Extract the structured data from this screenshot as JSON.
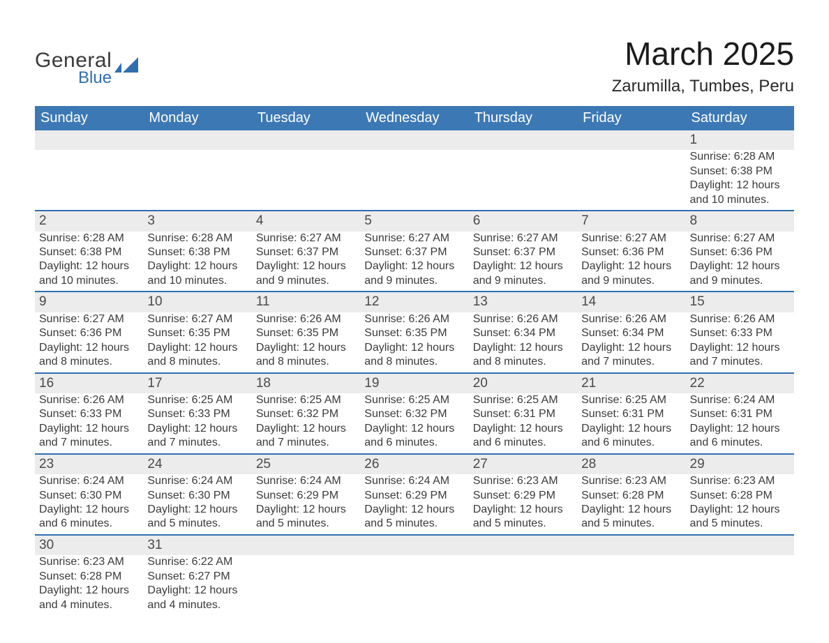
{
  "brand": {
    "word1": "General",
    "word2": "Blue",
    "shape_color": "#2f6fb0"
  },
  "title": {
    "month_year": "March 2025",
    "location": "Zarumilla, Tumbes, Peru"
  },
  "calendar": {
    "header_bg": "#3c78b4",
    "header_text_color": "#ffffff",
    "daynum_bg": "#ececec",
    "body_bg": "#ffffff",
    "separator_color": "#2f6fb0",
    "body_text_color": "#3a3a3a",
    "fontsize_header": 20,
    "fontsize_daynum": 19,
    "fontsize_body": 16,
    "day_names": [
      "Sunday",
      "Monday",
      "Tuesday",
      "Wednesday",
      "Thursday",
      "Friday",
      "Saturday"
    ],
    "weeks": [
      [
        null,
        null,
        null,
        null,
        null,
        null,
        {
          "n": "1",
          "sunrise": "Sunrise: 6:28 AM",
          "sunset": "Sunset: 6:38 PM",
          "daylight1": "Daylight: 12 hours",
          "daylight2": "and 10 minutes."
        }
      ],
      [
        {
          "n": "2",
          "sunrise": "Sunrise: 6:28 AM",
          "sunset": "Sunset: 6:38 PM",
          "daylight1": "Daylight: 12 hours",
          "daylight2": "and 10 minutes."
        },
        {
          "n": "3",
          "sunrise": "Sunrise: 6:28 AM",
          "sunset": "Sunset: 6:38 PM",
          "daylight1": "Daylight: 12 hours",
          "daylight2": "and 10 minutes."
        },
        {
          "n": "4",
          "sunrise": "Sunrise: 6:27 AM",
          "sunset": "Sunset: 6:37 PM",
          "daylight1": "Daylight: 12 hours",
          "daylight2": "and 9 minutes."
        },
        {
          "n": "5",
          "sunrise": "Sunrise: 6:27 AM",
          "sunset": "Sunset: 6:37 PM",
          "daylight1": "Daylight: 12 hours",
          "daylight2": "and 9 minutes."
        },
        {
          "n": "6",
          "sunrise": "Sunrise: 6:27 AM",
          "sunset": "Sunset: 6:37 PM",
          "daylight1": "Daylight: 12 hours",
          "daylight2": "and 9 minutes."
        },
        {
          "n": "7",
          "sunrise": "Sunrise: 6:27 AM",
          "sunset": "Sunset: 6:36 PM",
          "daylight1": "Daylight: 12 hours",
          "daylight2": "and 9 minutes."
        },
        {
          "n": "8",
          "sunrise": "Sunrise: 6:27 AM",
          "sunset": "Sunset: 6:36 PM",
          "daylight1": "Daylight: 12 hours",
          "daylight2": "and 9 minutes."
        }
      ],
      [
        {
          "n": "9",
          "sunrise": "Sunrise: 6:27 AM",
          "sunset": "Sunset: 6:36 PM",
          "daylight1": "Daylight: 12 hours",
          "daylight2": "and 8 minutes."
        },
        {
          "n": "10",
          "sunrise": "Sunrise: 6:27 AM",
          "sunset": "Sunset: 6:35 PM",
          "daylight1": "Daylight: 12 hours",
          "daylight2": "and 8 minutes."
        },
        {
          "n": "11",
          "sunrise": "Sunrise: 6:26 AM",
          "sunset": "Sunset: 6:35 PM",
          "daylight1": "Daylight: 12 hours",
          "daylight2": "and 8 minutes."
        },
        {
          "n": "12",
          "sunrise": "Sunrise: 6:26 AM",
          "sunset": "Sunset: 6:35 PM",
          "daylight1": "Daylight: 12 hours",
          "daylight2": "and 8 minutes."
        },
        {
          "n": "13",
          "sunrise": "Sunrise: 6:26 AM",
          "sunset": "Sunset: 6:34 PM",
          "daylight1": "Daylight: 12 hours",
          "daylight2": "and 8 minutes."
        },
        {
          "n": "14",
          "sunrise": "Sunrise: 6:26 AM",
          "sunset": "Sunset: 6:34 PM",
          "daylight1": "Daylight: 12 hours",
          "daylight2": "and 7 minutes."
        },
        {
          "n": "15",
          "sunrise": "Sunrise: 6:26 AM",
          "sunset": "Sunset: 6:33 PM",
          "daylight1": "Daylight: 12 hours",
          "daylight2": "and 7 minutes."
        }
      ],
      [
        {
          "n": "16",
          "sunrise": "Sunrise: 6:26 AM",
          "sunset": "Sunset: 6:33 PM",
          "daylight1": "Daylight: 12 hours",
          "daylight2": "and 7 minutes."
        },
        {
          "n": "17",
          "sunrise": "Sunrise: 6:25 AM",
          "sunset": "Sunset: 6:33 PM",
          "daylight1": "Daylight: 12 hours",
          "daylight2": "and 7 minutes."
        },
        {
          "n": "18",
          "sunrise": "Sunrise: 6:25 AM",
          "sunset": "Sunset: 6:32 PM",
          "daylight1": "Daylight: 12 hours",
          "daylight2": "and 7 minutes."
        },
        {
          "n": "19",
          "sunrise": "Sunrise: 6:25 AM",
          "sunset": "Sunset: 6:32 PM",
          "daylight1": "Daylight: 12 hours",
          "daylight2": "and 6 minutes."
        },
        {
          "n": "20",
          "sunrise": "Sunrise: 6:25 AM",
          "sunset": "Sunset: 6:31 PM",
          "daylight1": "Daylight: 12 hours",
          "daylight2": "and 6 minutes."
        },
        {
          "n": "21",
          "sunrise": "Sunrise: 6:25 AM",
          "sunset": "Sunset: 6:31 PM",
          "daylight1": "Daylight: 12 hours",
          "daylight2": "and 6 minutes."
        },
        {
          "n": "22",
          "sunrise": "Sunrise: 6:24 AM",
          "sunset": "Sunset: 6:31 PM",
          "daylight1": "Daylight: 12 hours",
          "daylight2": "and 6 minutes."
        }
      ],
      [
        {
          "n": "23",
          "sunrise": "Sunrise: 6:24 AM",
          "sunset": "Sunset: 6:30 PM",
          "daylight1": "Daylight: 12 hours",
          "daylight2": "and 6 minutes."
        },
        {
          "n": "24",
          "sunrise": "Sunrise: 6:24 AM",
          "sunset": "Sunset: 6:30 PM",
          "daylight1": "Daylight: 12 hours",
          "daylight2": "and 5 minutes."
        },
        {
          "n": "25",
          "sunrise": "Sunrise: 6:24 AM",
          "sunset": "Sunset: 6:29 PM",
          "daylight1": "Daylight: 12 hours",
          "daylight2": "and 5 minutes."
        },
        {
          "n": "26",
          "sunrise": "Sunrise: 6:24 AM",
          "sunset": "Sunset: 6:29 PM",
          "daylight1": "Daylight: 12 hours",
          "daylight2": "and 5 minutes."
        },
        {
          "n": "27",
          "sunrise": "Sunrise: 6:23 AM",
          "sunset": "Sunset: 6:29 PM",
          "daylight1": "Daylight: 12 hours",
          "daylight2": "and 5 minutes."
        },
        {
          "n": "28",
          "sunrise": "Sunrise: 6:23 AM",
          "sunset": "Sunset: 6:28 PM",
          "daylight1": "Daylight: 12 hours",
          "daylight2": "and 5 minutes."
        },
        {
          "n": "29",
          "sunrise": "Sunrise: 6:23 AM",
          "sunset": "Sunset: 6:28 PM",
          "daylight1": "Daylight: 12 hours",
          "daylight2": "and 5 minutes."
        }
      ],
      [
        {
          "n": "30",
          "sunrise": "Sunrise: 6:23 AM",
          "sunset": "Sunset: 6:28 PM",
          "daylight1": "Daylight: 12 hours",
          "daylight2": "and 4 minutes."
        },
        {
          "n": "31",
          "sunrise": "Sunrise: 6:22 AM",
          "sunset": "Sunset: 6:27 PM",
          "daylight1": "Daylight: 12 hours",
          "daylight2": "and 4 minutes."
        },
        null,
        null,
        null,
        null,
        null
      ]
    ]
  }
}
